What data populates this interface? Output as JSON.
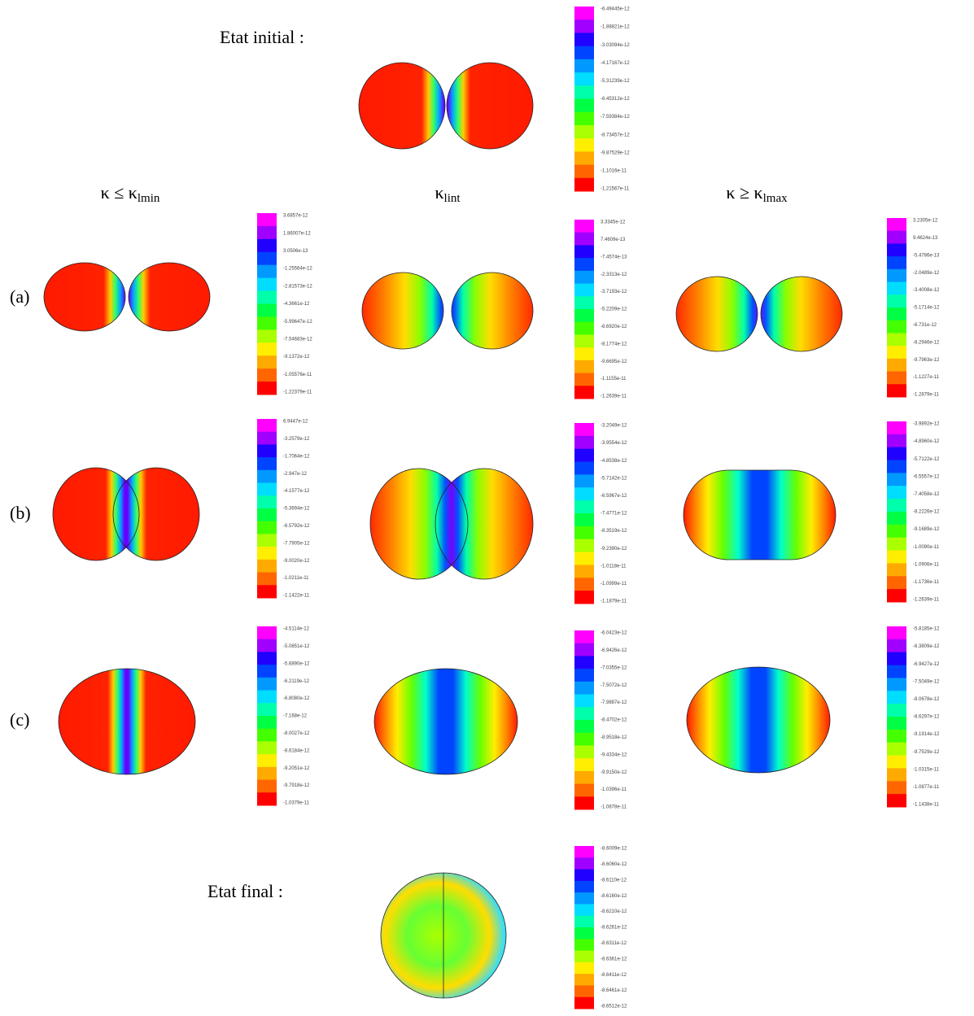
{
  "initial_label": "Etat initial :",
  "final_label": "Etat final :",
  "column_headers": [
    {
      "symbol": "κ ≤ κ",
      "sub": "lmin"
    },
    {
      "symbol": "κ",
      "sub": "lint"
    },
    {
      "symbol": "κ ≥ κ",
      "sub": "lmax"
    }
  ],
  "row_labels": [
    "(a)",
    "(b)",
    "(c)"
  ],
  "colorbars": {
    "initial": [
      "-6.49445e-12",
      "-1.88821e-12",
      "-3.03094e-12",
      "-4.17167e-12",
      "-5.31239e-12",
      "-6.45312e-12",
      "-7.59384e-12",
      "-8.73457e-12",
      "-9.87529e-12",
      "-1.1016e-11",
      "-1.21567e-11"
    ],
    "a1": [
      "3.6857e-12",
      "1.86007e-12",
      "3.0506e-13",
      "-1.25564e-12",
      "-2.81573e-12",
      "-4.3661e-12",
      "-5.99647e-12",
      "-7.54683e-12",
      "-9.1372e-12",
      "-1.05576e-11",
      "-1.22379e-11"
    ],
    "a2": [
      "3.3345e-12",
      "7.4609e-13",
      "-7.4574e-13",
      "-2.3313e-12",
      "-3.7193e-12",
      "-5.2209e-12",
      "-6.6920e-12",
      "-8.1774e-12",
      "-9.6695e-12",
      "-1.1155e-11",
      "-1.2639e-11"
    ],
    "a3": [
      "3.2305e-12",
      "9.4624e-13",
      "-5.4786e-13",
      "-2.0489e-12",
      "-3.4008e-12",
      "-5.1714e-12",
      "-6.731e-12",
      "-8.2946e-12",
      "-9.7963e-12",
      "-1.1227e-11",
      "-1.2879e-11"
    ],
    "b1": [
      "6.9447e-12",
      "-3.2579e-12",
      "-1.7064e-12",
      "-2.947e-12",
      "-4.1577e-12",
      "-5.3694e-12",
      "-6.5792e-12",
      "-7.7905e-12",
      "-9.0020e-12",
      "-1.0211e-11",
      "-1.1422e-11"
    ],
    "b2": [
      "-3.2049e-12",
      "-3.9554e-12",
      "-4.8538e-12",
      "-5.7142e-12",
      "-6.5967e-12",
      "-7.4771e-12",
      "-8.3519e-12",
      "-9.2390e-12",
      "-1.0118e-11",
      "-1.0999e-11",
      "-1.1879e-11"
    ],
    "b3": [
      "-3.9892e-12",
      "-4.8960e-12",
      "-5.7122e-12",
      "-6.5557e-12",
      "-7.4058e-12",
      "-8.2226e-12",
      "-9.1689e-12",
      "-1.0090e-11",
      "-1.0906e-11",
      "-1.1736e-11",
      "-1.2639e-11"
    ],
    "c1": [
      "-4.5114e-12",
      "-5.0851e-12",
      "-5.6890e-12",
      "-6.2119e-12",
      "-6.8080e-12",
      "-7.168e-12",
      "-8.0027e-12",
      "-8.6184e-12",
      "-9.2051e-12",
      "-9.7918e-12",
      "-1.0379e-11"
    ],
    "c2": [
      "-6.0423e-12",
      "-6.9426e-12",
      "-7.0355e-12",
      "-7.5072e-12",
      "-7.9887e-12",
      "-8.4702e-12",
      "-8.9518e-12",
      "-9.4334e-12",
      "-9.9150e-12",
      "-1.0396e-11",
      "-1.0878e-11"
    ],
    "c3": [
      "-5.8185e-12",
      "-6.3809e-12",
      "-6.9427e-12",
      "-7.5049e-12",
      "-8.0678e-12",
      "-8.6297e-12",
      "-9.1914e-12",
      "-9.7529e-12",
      "-1.0315e-11",
      "-1.0877e-11",
      "-1.1438e-11"
    ],
    "final": [
      "-8.6009e-12",
      "-8.6060e-12",
      "-8.6110e-12",
      "-8.6160e-12",
      "-8.6210e-12",
      "-8.6261e-12",
      "-8.6311e-12",
      "-8.6361e-12",
      "-8.6411e-12",
      "-8.6461e-12",
      "-8.6512e-12"
    ]
  }
}
